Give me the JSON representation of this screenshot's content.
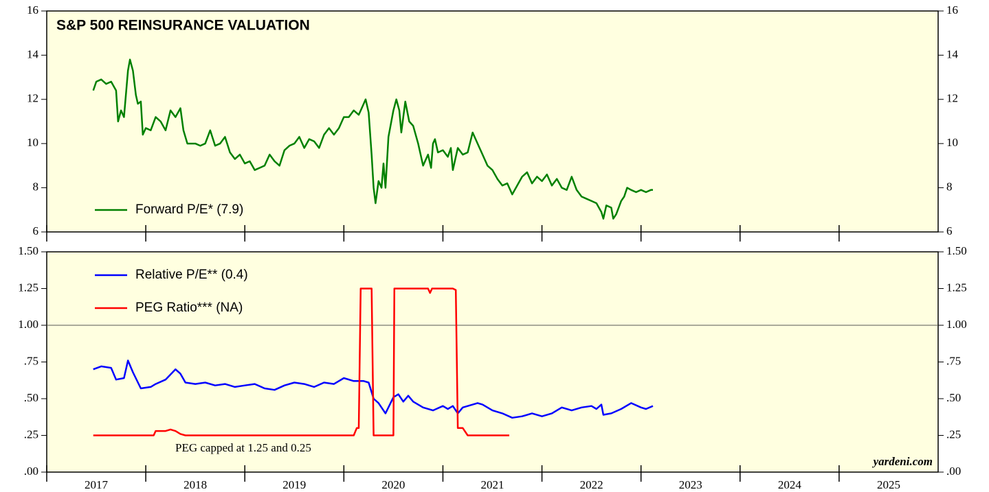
{
  "chart_data": [
    {
      "type": "line",
      "title": "S&P 500 REINSURANCE VALUATION",
      "legend": "lower left",
      "xlim": [
        2017,
        2026
      ],
      "xticks": [
        2017,
        2018,
        2019,
        2020,
        2021,
        2022,
        2023,
        2024,
        2025
      ],
      "ylim": [
        6,
        16
      ],
      "yticks": [
        6,
        8,
        10,
        12,
        14,
        16
      ],
      "x": [
        2017.47,
        2017.5,
        2017.55,
        2017.6,
        2017.65,
        2017.7,
        2017.72,
        2017.75,
        2017.78,
        2017.82,
        2017.84,
        2017.87,
        2017.9,
        2017.92,
        2017.95,
        2017.97,
        2018.0,
        2018.05,
        2018.1,
        2018.15,
        2018.2,
        2018.25,
        2018.3,
        2018.35,
        2018.38,
        2018.42,
        2018.5,
        2018.55,
        2018.6,
        2018.65,
        2018.7,
        2018.75,
        2018.8,
        2018.85,
        2018.9,
        2018.95,
        2019.0,
        2019.05,
        2019.1,
        2019.15,
        2019.2,
        2019.25,
        2019.3,
        2019.35,
        2019.4,
        2019.45,
        2019.5,
        2019.55,
        2019.6,
        2019.65,
        2019.7,
        2019.75,
        2019.8,
        2019.85,
        2019.9,
        2019.95,
        2020.0,
        2020.05,
        2020.1,
        2020.15,
        2020.2,
        2020.22,
        2020.25,
        2020.28,
        2020.3,
        2020.32,
        2020.35,
        2020.38,
        2020.4,
        2020.42,
        2020.45,
        2020.5,
        2020.53,
        2020.56,
        2020.58,
        2020.62,
        2020.66,
        2020.7,
        2020.75,
        2020.8,
        2020.85,
        2020.88,
        2020.9,
        2020.92,
        2020.95,
        2021.0,
        2021.05,
        2021.08,
        2021.1,
        2021.15,
        2021.2,
        2021.25,
        2021.3,
        2021.35,
        2021.4,
        2021.45,
        2021.5,
        2021.55,
        2021.6,
        2021.65,
        2021.7,
        2021.75,
        2021.8,
        2021.85,
        2021.9,
        2021.95,
        2022.0,
        2022.05,
        2022.1,
        2022.15,
        2022.2,
        2022.25,
        2022.3,
        2022.35,
        2022.4,
        2022.45,
        2022.5,
        2022.55,
        2022.6,
        2022.62,
        2022.65,
        2022.7,
        2022.72,
        2022.75,
        2022.8,
        2022.83,
        2022.86,
        2022.9,
        2022.95,
        2023.0,
        2023.05,
        2023.1,
        2023.12
      ],
      "series": [
        {
          "name": "Forward P/E* (7.9)",
          "color": "#008000",
          "values": [
            12.4,
            12.8,
            12.9,
            12.7,
            12.8,
            12.4,
            11.0,
            11.5,
            11.2,
            13.3,
            13.8,
            13.3,
            12.2,
            11.8,
            11.9,
            10.4,
            10.7,
            10.6,
            11.2,
            11.0,
            10.6,
            11.5,
            11.2,
            11.6,
            10.6,
            10.0,
            10.0,
            9.9,
            10.0,
            10.6,
            9.9,
            10.0,
            10.3,
            9.6,
            9.3,
            9.5,
            9.1,
            9.2,
            8.8,
            8.9,
            9.0,
            9.5,
            9.2,
            9.0,
            9.7,
            9.9,
            10.0,
            10.3,
            9.8,
            10.2,
            10.1,
            9.8,
            10.4,
            10.7,
            10.4,
            10.7,
            11.2,
            11.2,
            11.5,
            11.3,
            11.8,
            12.0,
            11.4,
            9.5,
            8.0,
            7.3,
            8.3,
            8.0,
            9.1,
            8.0,
            10.3,
            11.5,
            12.0,
            11.5,
            10.5,
            11.9,
            11.0,
            10.8,
            10.0,
            9.0,
            9.5,
            8.9,
            10.0,
            10.2,
            9.6,
            9.7,
            9.4,
            9.8,
            8.8,
            9.8,
            9.5,
            9.6,
            10.5,
            10.0,
            9.5,
            9.0,
            8.8,
            8.4,
            8.1,
            8.2,
            7.7,
            8.1,
            8.5,
            8.7,
            8.2,
            8.5,
            8.3,
            8.6,
            8.1,
            8.4,
            8.0,
            7.9,
            8.5,
            7.9,
            7.6,
            7.5,
            7.4,
            7.3,
            6.9,
            6.6,
            7.2,
            7.1,
            6.6,
            6.8,
            7.4,
            7.6,
            8.0,
            7.9,
            7.8,
            7.9,
            7.8,
            7.9,
            7.9
          ]
        }
      ]
    },
    {
      "type": "line",
      "legend": "upper left",
      "annotation": "PEG capped at 1.25 and 0.25",
      "watermark": "yardeni.com",
      "hline": 1,
      "xlim": [
        2017,
        2026
      ],
      "xticks": [
        2017,
        2018,
        2019,
        2020,
        2021,
        2022,
        2023,
        2024,
        2025
      ],
      "ylim": [
        0,
        1.5
      ],
      "yticks": [
        {
          "value": 0,
          "label": ".00"
        },
        {
          "value": 0.25,
          "label": ".25"
        },
        {
          "value": 0.5,
          "label": ".50"
        },
        {
          "value": 0.75,
          "label": ".75"
        },
        {
          "value": 1,
          "label": "1.00"
        },
        {
          "value": 1.25,
          "label": "1.25"
        },
        {
          "value": 1.5,
          "label": "1.50"
        }
      ],
      "series": [
        {
          "name": "Relative P/E** (0.4)",
          "color": "#0000ff",
          "x": [
            2017.47,
            2017.55,
            2017.65,
            2017.7,
            2017.78,
            2017.82,
            2017.87,
            2017.95,
            2018.05,
            2018.1,
            2018.2,
            2018.3,
            2018.35,
            2018.4,
            2018.5,
            2018.6,
            2018.7,
            2018.8,
            2018.9,
            2019.0,
            2019.1,
            2019.2,
            2019.3,
            2019.4,
            2019.5,
            2019.6,
            2019.7,
            2019.8,
            2019.9,
            2020.0,
            2020.1,
            2020.2,
            2020.25,
            2020.3,
            2020.35,
            2020.42,
            2020.5,
            2020.55,
            2020.6,
            2020.65,
            2020.7,
            2020.8,
            2020.9,
            2021.0,
            2021.05,
            2021.1,
            2021.15,
            2021.2,
            2021.3,
            2021.35,
            2021.4,
            2021.5,
            2021.6,
            2021.7,
            2021.8,
            2021.9,
            2022.0,
            2022.1,
            2022.2,
            2022.3,
            2022.4,
            2022.5,
            2022.55,
            2022.6,
            2022.62,
            2022.7,
            2022.8,
            2022.9,
            2023.0,
            2023.05,
            2023.12
          ],
          "values": [
            0.7,
            0.72,
            0.71,
            0.63,
            0.64,
            0.76,
            0.68,
            0.57,
            0.58,
            0.6,
            0.63,
            0.7,
            0.67,
            0.61,
            0.6,
            0.61,
            0.59,
            0.6,
            0.58,
            0.59,
            0.6,
            0.57,
            0.56,
            0.59,
            0.61,
            0.6,
            0.58,
            0.61,
            0.6,
            0.64,
            0.62,
            0.62,
            0.61,
            0.5,
            0.47,
            0.4,
            0.51,
            0.53,
            0.48,
            0.52,
            0.48,
            0.44,
            0.42,
            0.45,
            0.43,
            0.45,
            0.4,
            0.44,
            0.46,
            0.47,
            0.46,
            0.42,
            0.4,
            0.37,
            0.38,
            0.4,
            0.38,
            0.4,
            0.44,
            0.42,
            0.44,
            0.45,
            0.43,
            0.46,
            0.39,
            0.4,
            0.43,
            0.47,
            0.44,
            0.43,
            0.45
          ]
        },
        {
          "name": "PEG Ratio*** (NA)",
          "color": "#ff0000",
          "x": [
            2017.47,
            2018.08,
            2018.1,
            2018.2,
            2018.25,
            2018.3,
            2018.35,
            2018.4,
            2020.1,
            2020.13,
            2020.15,
            2020.17,
            2020.28,
            2020.3,
            2020.5,
            2020.51,
            2020.85,
            2020.87,
            2020.89,
            2021.1,
            2021.13,
            2021.15,
            2021.2,
            2021.25,
            2021.67
          ],
          "values": [
            0.25,
            0.25,
            0.28,
            0.28,
            0.29,
            0.28,
            0.26,
            0.25,
            0.25,
            0.3,
            0.3,
            1.25,
            1.25,
            0.25,
            0.25,
            1.25,
            1.25,
            1.22,
            1.25,
            1.25,
            1.24,
            0.3,
            0.3,
            0.25,
            0.25
          ]
        }
      ]
    }
  ]
}
